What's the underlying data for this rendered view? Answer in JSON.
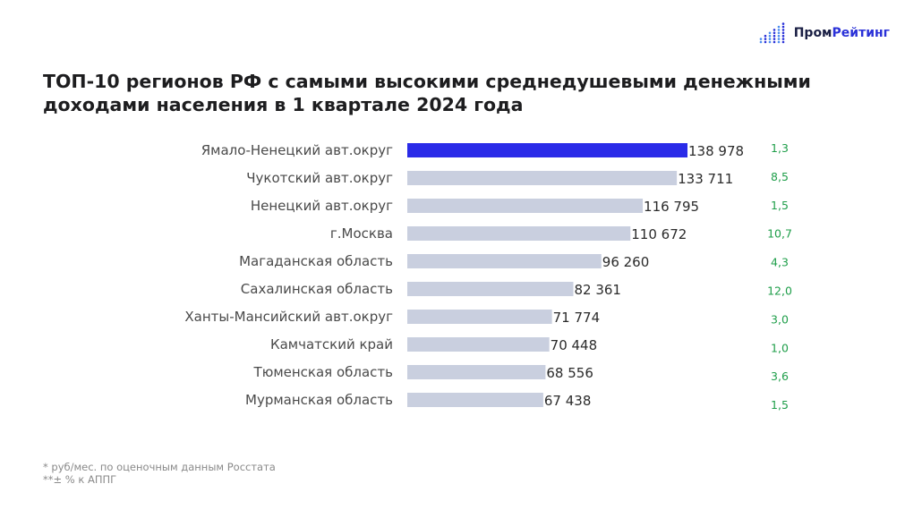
{
  "logo": {
    "part1": "Пром",
    "part2": "Рейтинг",
    "icon": "bar-dots-icon"
  },
  "title_line1": "ТОП-10 регионов РФ с самыми высокими среднедушевыми денежными",
  "title_line2": "доходами населения в 1 квартале 2024 года",
  "footnotes": {
    "note1": "* руб/мес. по оценочным данным Росстата",
    "note2": "**± % к АППГ"
  },
  "colors": {
    "highlight": "#2a2be8",
    "bar": "#c9cfdf",
    "change": "#1f9e4a"
  },
  "chart_data": {
    "type": "bar",
    "orientation": "horizontal",
    "title": "ТОП-10 регионов РФ с самыми высокими среднедушевыми денежными доходами населения в 1 квартале 2024 года",
    "categories": [
      "Ямало-Ненецкий авт.округ",
      "Чукотский авт.округ",
      "Ненецкий авт.округ",
      "г.Москва",
      "Магаданская область",
      "Сахалинская область",
      "Ханты-Мансийский авт.округ",
      "Камчатский край",
      "Тюменская область",
      "Мурманская область"
    ],
    "values": [
      138978,
      133711,
      116795,
      110672,
      96260,
      82361,
      71774,
      70448,
      68556,
      67438
    ],
    "value_labels": [
      "138 978",
      "133 711",
      "116 795",
      "110 672",
      "96 260",
      "82 361",
      "71 774",
      "70 448",
      "68 556",
      "67 438"
    ],
    "change_labels": [
      "1,3",
      "8,5",
      "1,5",
      "10,7",
      "4,3",
      "12,0",
      "3,0",
      "1,0",
      "3,6",
      "1,5"
    ],
    "highlight_index": 0,
    "xlim": [
      0,
      138978
    ],
    "grid": false
  }
}
